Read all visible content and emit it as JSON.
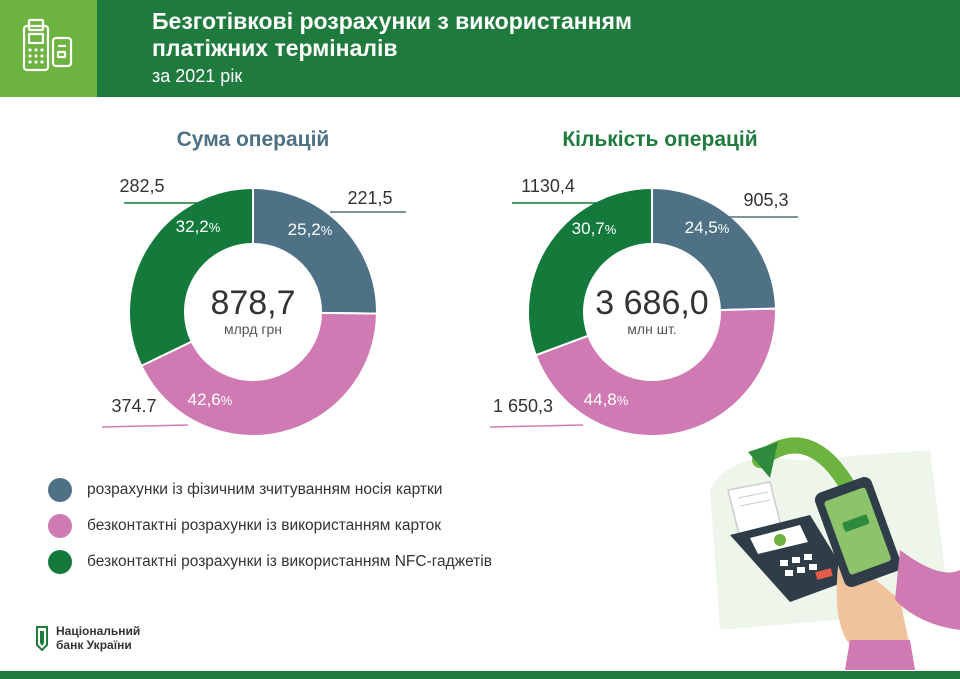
{
  "header": {
    "title_line1": "Безготівкові розрахунки з використанням",
    "title_line2": "платіжних терміналів",
    "subtitle": "за 2021 рік",
    "icon": "payment-terminal-icon"
  },
  "colors": {
    "header_bg": "#1f7a3e",
    "icon_box": "#6db33f",
    "slate": "#4e7185",
    "pink": "#d07ab3",
    "green": "#137a3c"
  },
  "chart_data": [
    {
      "type": "donut",
      "title": "Сума операцій",
      "center_value": "878,7",
      "center_unit": "млрд грн",
      "series": [
        {
          "value": 221.5,
          "value_label": "221,5",
          "percent": "25,2",
          "color": "#4e7185"
        },
        {
          "value": 374.7,
          "value_label": "374.7",
          "percent": "42,6",
          "color": "#d07ab3"
        },
        {
          "value": 282.5,
          "value_label": "282,5",
          "percent": "32,2",
          "color": "#137a3c"
        }
      ]
    },
    {
      "type": "donut",
      "title": "Кількість операцій",
      "center_value": "3 686,0",
      "center_unit": "млн шт.",
      "series": [
        {
          "value": 905.3,
          "value_label": "905,3",
          "percent": "24,5",
          "color": "#4e7185"
        },
        {
          "value": 1650.3,
          "value_label": "1 650,3",
          "percent": "44,8",
          "color": "#d07ab3"
        },
        {
          "value": 1130.4,
          "value_label": "1130,4",
          "percent": "30,7",
          "color": "#137a3c"
        }
      ]
    }
  ],
  "legend": [
    {
      "label": "розрахунки із фізичним зчитуванням носія картки",
      "color": "#4e7185"
    },
    {
      "label": "безконтактні розрахунки із використанням карток",
      "color": "#d07ab3"
    },
    {
      "label": "безконтактні розрахунки із використанням NFC-гаджетів",
      "color": "#137a3c"
    }
  ],
  "footer": {
    "logo_line1": "Національний",
    "logo_line2": "банк України"
  }
}
